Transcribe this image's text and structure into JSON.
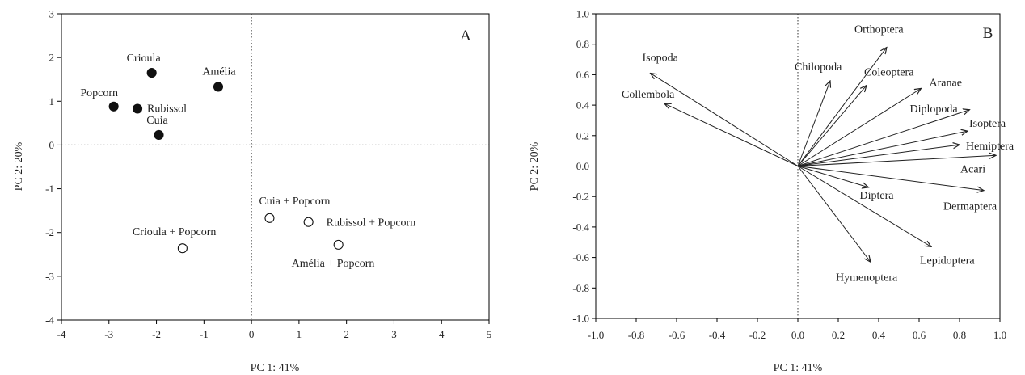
{
  "chart_data": [
    {
      "type": "scatter",
      "panel_label": "A",
      "xlabel": "PC 1: 41%",
      "ylabel": "PC 2: 20%",
      "xlim": [
        -4,
        5
      ],
      "ylim": [
        -4,
        3
      ],
      "xticks": [
        "-4",
        "-3",
        "-2",
        "-1",
        "0",
        "1",
        "2",
        "3",
        "4",
        "5"
      ],
      "yticks": [
        "3",
        "2",
        "1",
        "0",
        "-1",
        "-2",
        "-3",
        "-4"
      ],
      "points": [
        {
          "label": "Crioula",
          "x": -2.1,
          "y": 1.65,
          "filled": true
        },
        {
          "label": "Amélia",
          "x": -0.7,
          "y": 1.33,
          "filled": true
        },
        {
          "label": "Popcorn",
          "x": -2.9,
          "y": 0.88,
          "filled": true
        },
        {
          "label": "Rubissol",
          "x": -2.4,
          "y": 0.83,
          "filled": true
        },
        {
          "label": "Cuia",
          "x": -1.95,
          "y": 0.23,
          "filled": true
        },
        {
          "label": "Cuia + Popcorn",
          "x": 0.38,
          "y": -1.67,
          "filled": false
        },
        {
          "label": "Rubissol + Popcorn",
          "x": 1.2,
          "y": -1.76,
          "filled": false
        },
        {
          "label": "Amélia + Popcorn",
          "x": 1.83,
          "y": -2.28,
          "filled": false
        },
        {
          "label": "Crioula + Popcorn",
          "x": -1.45,
          "y": -2.36,
          "filled": false
        }
      ]
    },
    {
      "type": "biplot",
      "panel_label": "B",
      "xlabel": "PC 1: 41%",
      "ylabel": "PC 2: 20%",
      "xlim": [
        -1.0,
        1.0
      ],
      "ylim": [
        -1.0,
        1.0
      ],
      "xticks": [
        "-1.0",
        "-0.8",
        "-0.6",
        "-0.4",
        "-0.2",
        "0.0",
        "0.2",
        "0.4",
        "0.6",
        "0.8",
        "1.0"
      ],
      "yticks": [
        "1.0",
        "0.8",
        "0.6",
        "0.4",
        "0.2",
        "0.0",
        "-0.2",
        "-0.4",
        "-0.6",
        "-0.8",
        "-1.0"
      ],
      "vectors": [
        {
          "label": "Orthoptera",
          "x": 0.44,
          "y": 0.78
        },
        {
          "label": "Chilopoda",
          "x": 0.16,
          "y": 0.56
        },
        {
          "label": "Coleoptera",
          "x": 0.34,
          "y": 0.53
        },
        {
          "label": "Aranae",
          "x": 0.61,
          "y": 0.51
        },
        {
          "label": "Isopoda",
          "x": -0.73,
          "y": 0.61
        },
        {
          "label": "Collembola",
          "x": -0.66,
          "y": 0.41
        },
        {
          "label": "Diplopoda",
          "x": 0.85,
          "y": 0.37
        },
        {
          "label": "Isoptera",
          "x": 0.84,
          "y": 0.23
        },
        {
          "label": "Hemiptera",
          "x": 0.8,
          "y": 0.14
        },
        {
          "label": "Acari",
          "x": 0.98,
          "y": 0.07
        },
        {
          "label": "Diptera",
          "x": 0.35,
          "y": -0.14
        },
        {
          "label": "Dermaptera",
          "x": 0.92,
          "y": -0.16
        },
        {
          "label": "Lepidoptera",
          "x": 0.66,
          "y": -0.53
        },
        {
          "label": "Hymenoptera",
          "x": 0.36,
          "y": -0.63
        }
      ]
    }
  ]
}
